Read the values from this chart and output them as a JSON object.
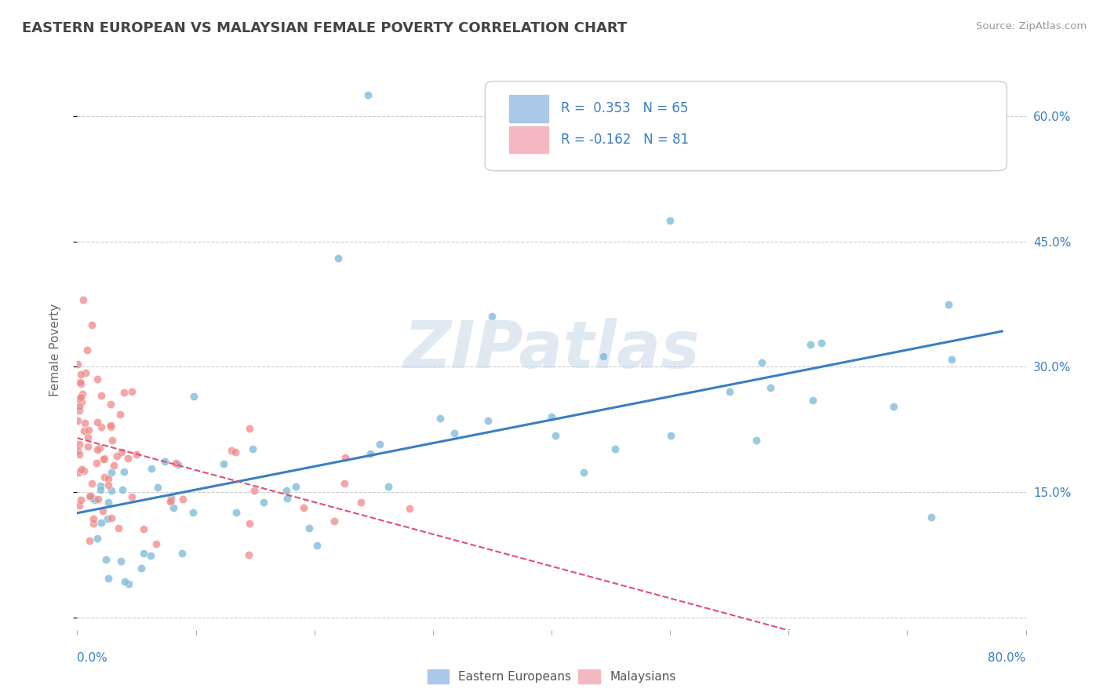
{
  "title": "EASTERN EUROPEAN VS MALAYSIAN FEMALE POVERTY CORRELATION CHART",
  "source": "Source: ZipAtlas.com",
  "ylabel": "Female Poverty",
  "yticks": [
    0.0,
    0.15,
    0.3,
    0.45,
    0.6
  ],
  "ytick_labels": [
    "",
    "15.0%",
    "30.0%",
    "45.0%",
    "60.0%"
  ],
  "blue_scatter_color": "#7ab8d8",
  "pink_scatter_color": "#f08888",
  "blue_line_color": "#3a7fc1",
  "pink_line_color": "#e05070",
  "watermark": "ZIPatlas",
  "watermark_color": "#c8d8e8",
  "xlim": [
    0.0,
    0.8
  ],
  "ylim": [
    -0.015,
    0.655
  ],
  "background_color": "#ffffff",
  "grid_color": "#cccccc",
  "text_color_blue": "#3a7fc1",
  "text_color_dark": "#444444",
  "blue_N": 65,
  "pink_N": 81,
  "seed": 42
}
